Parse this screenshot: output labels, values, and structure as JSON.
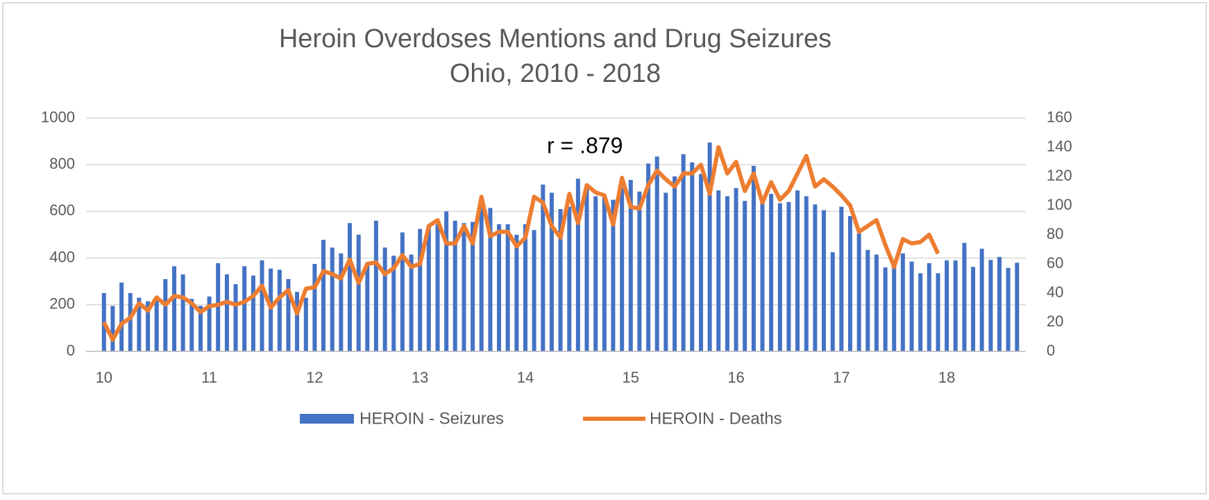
{
  "chart_data": {
    "type": "combo",
    "title": "Heroin Overdoses Mentions and Drug Seizures",
    "subtitle": "Ohio, 2010 - 2018",
    "annotation": "r = .879",
    "x": [
      10,
      10.083,
      10.167,
      10.25,
      10.333,
      10.417,
      10.5,
      10.583,
      10.667,
      10.75,
      10.833,
      10.917,
      11,
      11.083,
      11.167,
      11.25,
      11.333,
      11.417,
      11.5,
      11.583,
      11.667,
      11.75,
      11.833,
      11.917,
      12,
      12.083,
      12.167,
      12.25,
      12.333,
      12.417,
      12.5,
      12.583,
      12.667,
      12.75,
      12.833,
      12.917,
      13,
      13.083,
      13.167,
      13.25,
      13.333,
      13.417,
      13.5,
      13.583,
      13.667,
      13.75,
      13.833,
      13.917,
      14,
      14.083,
      14.167,
      14.25,
      14.333,
      14.417,
      14.5,
      14.583,
      14.667,
      14.75,
      14.833,
      14.917,
      15,
      15.083,
      15.167,
      15.25,
      15.333,
      15.417,
      15.5,
      15.583,
      15.667,
      15.75,
      15.833,
      15.917,
      16,
      16.083,
      16.167,
      16.25,
      16.333,
      16.417,
      16.5,
      16.583,
      16.667,
      16.75,
      16.833,
      16.917,
      17,
      17.083,
      17.167,
      17.25,
      17.333,
      17.417,
      17.5,
      17.583,
      17.667,
      17.75,
      17.833,
      17.917,
      18,
      18.083,
      18.167,
      18.25,
      18.333,
      18.417,
      18.5,
      18.583,
      18.667
    ],
    "series": [
      {
        "name": "HEROIN - Seizures",
        "type": "bar",
        "color": "#4472c4",
        "values": [
          250,
          195,
          295,
          250,
          230,
          215,
          230,
          310,
          365,
          330,
          225,
          195,
          235,
          378,
          330,
          288,
          365,
          325,
          390,
          355,
          350,
          310,
          255,
          230,
          375,
          478,
          445,
          420,
          550,
          500,
          380,
          560,
          445,
          410,
          510,
          415,
          525,
          540,
          545,
          600,
          560,
          550,
          555,
          650,
          615,
          545,
          545,
          500,
          545,
          520,
          715,
          680,
          610,
          620,
          740,
          710,
          665,
          660,
          650,
          700,
          735,
          685,
          805,
          835,
          680,
          750,
          845,
          810,
          760,
          895,
          690,
          665,
          700,
          645,
          795,
          640,
          675,
          635,
          640,
          690,
          665,
          630,
          605,
          425,
          620,
          580,
          505,
          435,
          415,
          360,
          360,
          420,
          385,
          335,
          378,
          335,
          390,
          390,
          465,
          362,
          440,
          392,
          405,
          358,
          380
        ]
      },
      {
        "name": "HEROIN - Deaths",
        "type": "line",
        "axis": "y2",
        "color": "#ed7d31",
        "values": [
          20,
          8,
          19,
          23,
          33,
          28,
          37,
          32,
          38,
          37,
          33,
          27,
          31,
          32,
          34,
          32,
          34,
          38,
          45,
          30,
          37,
          42,
          26,
          43,
          44,
          55,
          53,
          50,
          63,
          47,
          60,
          61,
          53,
          57,
          66,
          58,
          60,
          86,
          90,
          74,
          74,
          86,
          74,
          106,
          79,
          82,
          82,
          72,
          78,
          106,
          102,
          86,
          78,
          108,
          88,
          114,
          109,
          107,
          87,
          119,
          99,
          98,
          114,
          124,
          118,
          113,
          122,
          122,
          128,
          108,
          140,
          122,
          130,
          110,
          122,
          102,
          116,
          104,
          110,
          122,
          134,
          113,
          118,
          113,
          107,
          100,
          82,
          86,
          90,
          73,
          58,
          77,
          74,
          75,
          80,
          67,
          null,
          null,
          null,
          null,
          null,
          null,
          null,
          null,
          null
        ]
      }
    ],
    "xlim": [
      9.83,
      18.75
    ],
    "xticks": [
      10,
      11,
      12,
      13,
      14,
      15,
      16,
      17,
      18
    ],
    "ylim": [
      0,
      1000
    ],
    "yticks": [
      0,
      200,
      400,
      600,
      800,
      1000
    ],
    "y2lim": [
      0,
      160
    ],
    "y2ticks": [
      0,
      20,
      40,
      60,
      80,
      100,
      120,
      140,
      160
    ],
    "grid": true,
    "legend": "bottom"
  }
}
